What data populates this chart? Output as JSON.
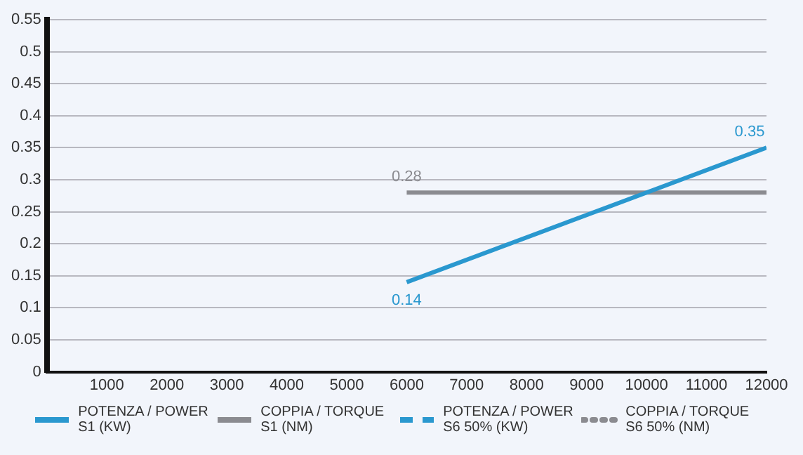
{
  "chart_data": {
    "type": "line",
    "x": [
      6000,
      12000
    ],
    "series": [
      {
        "name": "POTENZA / POWER S1 (KW)",
        "color": "#2a98cf",
        "values": [
          0.14,
          0.35
        ],
        "value_labels": [
          "0.14",
          "0.35"
        ],
        "line_style": "solid"
      },
      {
        "name": "COPPIA / TORQUE S1 (NM)",
        "color": "#8b8b90",
        "values": [
          0.28,
          0.28
        ],
        "value_labels": [
          "0.28",
          null
        ],
        "line_style": "solid"
      },
      {
        "name": "POTENZA / POWER S6 50% (KW)",
        "color": "#2a98cf",
        "values": [
          null,
          null
        ],
        "line_style": "dashed"
      },
      {
        "name": "COPPIA / TORQUE S6 50% (NM)",
        "color": "#8b8b90",
        "values": [
          null,
          null
        ],
        "line_style": "dotted"
      }
    ],
    "xlim": [
      0,
      12000
    ],
    "xticks": [
      1000,
      2000,
      3000,
      4000,
      5000,
      6000,
      7000,
      8000,
      9000,
      10000,
      11000,
      12000
    ],
    "ylim": [
      0,
      0.55
    ],
    "yticks": [
      0,
      0.05,
      0.1,
      0.15,
      0.2,
      0.25,
      0.3,
      0.35,
      0.4,
      0.45,
      0.5,
      0.55
    ],
    "grid": "y",
    "legend": "bottom",
    "marker": "none"
  }
}
